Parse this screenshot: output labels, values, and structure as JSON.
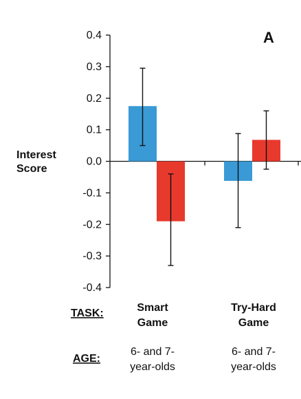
{
  "chart_data": {
    "type": "bar",
    "panel_label": "A",
    "ylabel": [
      "Interest",
      "Score"
    ],
    "ylim": [
      -0.4,
      0.4
    ],
    "yticks": [
      "0.4",
      "0.3",
      "0.2",
      "0.1",
      "0.0",
      "-0.1",
      "-0.2",
      "-0.3",
      "-0.4"
    ],
    "ytick_values": [
      0.4,
      0.3,
      0.2,
      0.1,
      0.0,
      -0.1,
      -0.2,
      -0.3,
      -0.4
    ],
    "groups": [
      {
        "task": [
          "Smart",
          "Game"
        ],
        "age": [
          "6- and 7-",
          "year-olds"
        ],
        "bars": [
          {
            "value": 0.175,
            "err_low": 0.05,
            "err_high": 0.295,
            "color": "#3a9ad6"
          },
          {
            "value": -0.19,
            "err_low": -0.33,
            "err_high": -0.04,
            "color": "#e8392d"
          }
        ]
      },
      {
        "task": [
          "Try-Hard",
          "Game"
        ],
        "age": [
          "6- and 7-",
          "year-olds"
        ],
        "bars": [
          {
            "value": -0.062,
            "err_low": -0.21,
            "err_high": 0.088,
            "color": "#3a9ad6"
          },
          {
            "value": 0.068,
            "err_low": -0.025,
            "err_high": 0.16,
            "color": "#e8392d"
          }
        ]
      }
    ],
    "row_labels": {
      "task": "TASK:",
      "age": "AGE:"
    }
  }
}
